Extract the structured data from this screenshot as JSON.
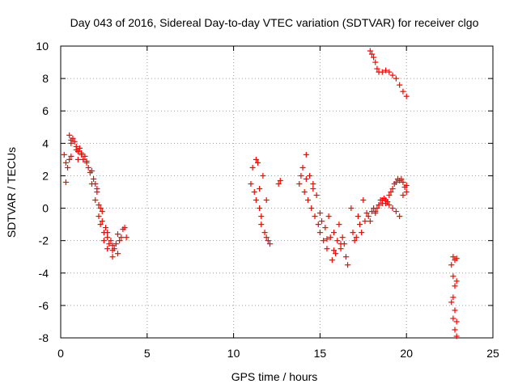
{
  "chart_data": {
    "type": "scatter",
    "title": "Day 043 of 2016, Sidereal Day-to-day VTEC variation (SDTVAR) for receiver clgo",
    "xlabel": "GPS time / hours",
    "ylabel": "SDTVAR / TECUs",
    "xlim": [
      0,
      25
    ],
    "ylim": [
      -8,
      10
    ],
    "xticks": [
      0,
      5,
      10,
      15,
      20,
      25
    ],
    "yticks": [
      -8,
      -6,
      -4,
      -2,
      0,
      2,
      4,
      6,
      8,
      10
    ],
    "grid": true,
    "marker": "+",
    "color": "#ff0000",
    "series": [
      {
        "name": "SDTVAR",
        "x": [
          0.2,
          0.3,
          0.4,
          0.5,
          0.5,
          0.6,
          0.6,
          0.7,
          0.8,
          0.9,
          1.0,
          1.0,
          1.1,
          1.2,
          1.3,
          1.4,
          1.5,
          1.6,
          1.7,
          1.8,
          1.9,
          2.0,
          2.0,
          2.1,
          2.2,
          2.2,
          2.3,
          2.3,
          2.4,
          2.5,
          2.5,
          2.6,
          2.7,
          2.7,
          2.8,
          2.9,
          3.0,
          3.0,
          3.1,
          3.2,
          3.3,
          3.4,
          3.5,
          3.6,
          3.7,
          3.8,
          0.3,
          0.6,
          0.9,
          1.2,
          1.5,
          1.8,
          2.1,
          2.4,
          2.7,
          3.0,
          3.3,
          11.0,
          11.1,
          11.2,
          11.3,
          11.4,
          11.5,
          11.6,
          11.7,
          11.8,
          11.9,
          12.0,
          11.3,
          11.6,
          11.9,
          12.1,
          11.5,
          12.6,
          12.7,
          13.8,
          13.9,
          14.0,
          14.1,
          14.2,
          14.3,
          14.4,
          14.5,
          14.6,
          14.7,
          14.8,
          14.9,
          15.0,
          15.1,
          15.2,
          15.3,
          15.4,
          15.5,
          15.6,
          15.7,
          15.8,
          15.9,
          16.0,
          16.1,
          16.2,
          16.3,
          16.4,
          16.5,
          16.6,
          14.2,
          14.6,
          15.0,
          15.4,
          15.8,
          16.2,
          16.8,
          16.9,
          17.0,
          17.1,
          17.2,
          17.3,
          17.4,
          17.5,
          17.6,
          17.7,
          17.8,
          17.9,
          18.0,
          18.1,
          18.2,
          18.3,
          18.4,
          18.5,
          18.6,
          18.7,
          18.8,
          18.9,
          19.0,
          19.1,
          19.2,
          19.3,
          19.4,
          19.5,
          19.6,
          19.7,
          19.8,
          19.9,
          20.0,
          18.2,
          18.4,
          18.6,
          18.8,
          19.0,
          19.2,
          19.4,
          19.6,
          19.8,
          20.0,
          17.9,
          18.0,
          18.1,
          18.2,
          18.3,
          18.4,
          18.6,
          18.8,
          19.0,
          19.2,
          19.4,
          19.6,
          19.8,
          20.0,
          22.6,
          22.7,
          22.7,
          22.8,
          22.8,
          22.9,
          22.9,
          22.7,
          22.8,
          22.9,
          22.6,
          22.7,
          22.8,
          22.9
        ],
        "y": [
          3.3,
          2.8,
          2.5,
          3.0,
          4.5,
          4.0,
          3.2,
          4.3,
          4.1,
          3.6,
          3.5,
          3.0,
          3.7,
          3.3,
          3.0,
          3.2,
          2.8,
          2.5,
          2.2,
          1.5,
          1.8,
          1.5,
          0.5,
          1.0,
          0.2,
          -0.5,
          0.0,
          -1.0,
          -0.8,
          -1.5,
          -2.0,
          -1.2,
          -1.8,
          -2.5,
          -2.2,
          -2.0,
          -2.6,
          -3.0,
          -2.5,
          -2.2,
          -2.8,
          -2.0,
          -1.8,
          -1.3,
          -1.2,
          -1.8,
          1.6,
          4.2,
          3.8,
          3.4,
          2.9,
          2.3,
          1.2,
          -0.2,
          -1.5,
          -2.3,
          -1.6,
          1.5,
          2.5,
          1.0,
          0.5,
          2.8,
          0.0,
          -1.0,
          2.0,
          -1.5,
          0.5,
          -2.0,
          3.0,
          -0.5,
          -1.8,
          -2.2,
          1.2,
          1.5,
          1.7,
          1.5,
          2.0,
          2.5,
          1.0,
          3.3,
          0.5,
          2.0,
          0.0,
          1.5,
          -0.5,
          0.8,
          -1.0,
          -1.5,
          -0.8,
          -2.0,
          -1.2,
          -2.5,
          -0.5,
          -1.8,
          -3.2,
          -1.5,
          -2.8,
          -2.0,
          -1.0,
          -2.5,
          -1.8,
          -2.2,
          -3.0,
          -3.5,
          1.8,
          1.2,
          -0.3,
          -1.9,
          -2.6,
          -2.2,
          0.0,
          -1.5,
          -2.0,
          -1.8,
          -0.5,
          -1.0,
          -1.5,
          0.5,
          -0.8,
          -0.3,
          -0.5,
          -0.8,
          -0.2,
          0.0,
          -0.3,
          0.0,
          0.2,
          0.5,
          0.3,
          0.6,
          0.5,
          0.4,
          0.8,
          1.0,
          1.2,
          1.5,
          1.6,
          1.8,
          1.7,
          1.8,
          1.6,
          1.3,
          1.4,
          -0.2,
          0.2,
          0.5,
          0.3,
          0.2,
          0.0,
          -0.2,
          -0.5,
          0.8,
          1.0,
          9.7,
          9.5,
          9.3,
          9.0,
          8.6,
          8.4,
          8.4,
          8.5,
          8.4,
          8.2,
          8.0,
          7.6,
          7.2,
          6.9,
          -3.5,
          -3.0,
          -4.2,
          -3.2,
          -4.8,
          -3.1,
          -4.5,
          -5.5,
          -6.3,
          -7.0,
          -5.8,
          -6.8,
          -7.5,
          -7.9
        ]
      }
    ]
  }
}
